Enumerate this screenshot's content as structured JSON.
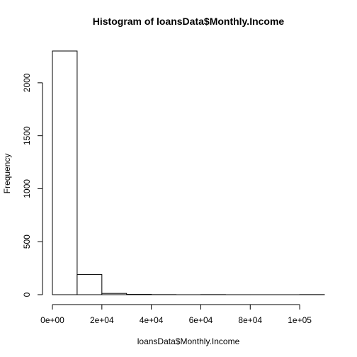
{
  "chart_data": {
    "type": "bar",
    "title": "Histogram of loansData$Monthly.Income",
    "xlabel": "loansData$Monthly.Income",
    "ylabel": "Frequency",
    "bins": [
      {
        "start": 0,
        "end": 10000,
        "count": 2300
      },
      {
        "start": 10000,
        "end": 20000,
        "count": 190
      },
      {
        "start": 20000,
        "end": 30000,
        "count": 12
      },
      {
        "start": 30000,
        "end": 40000,
        "count": 3
      },
      {
        "start": 40000,
        "end": 50000,
        "count": 1
      },
      {
        "start": 50000,
        "end": 60000,
        "count": 0
      },
      {
        "start": 60000,
        "end": 70000,
        "count": 1
      },
      {
        "start": 70000,
        "end": 80000,
        "count": 0
      },
      {
        "start": 80000,
        "end": 90000,
        "count": 0
      },
      {
        "start": 90000,
        "end": 100000,
        "count": 0
      },
      {
        "start": 100000,
        "end": 110000,
        "count": 1
      }
    ],
    "xlim": [
      0,
      110000
    ],
    "ylim": [
      0,
      2300
    ],
    "xticks": [
      {
        "value": 0,
        "label": "0e+00"
      },
      {
        "value": 20000,
        "label": "2e+04"
      },
      {
        "value": 40000,
        "label": "4e+04"
      },
      {
        "value": 60000,
        "label": "6e+04"
      },
      {
        "value": 80000,
        "label": "8e+04"
      },
      {
        "value": 100000,
        "label": "1e+05"
      }
    ],
    "yticks": [
      {
        "value": 0,
        "label": "0"
      },
      {
        "value": 500,
        "label": "500"
      },
      {
        "value": 1000,
        "label": "1000"
      },
      {
        "value": 1500,
        "label": "1500"
      },
      {
        "value": 2000,
        "label": "2000"
      }
    ],
    "grid": false,
    "legend": "none"
  }
}
